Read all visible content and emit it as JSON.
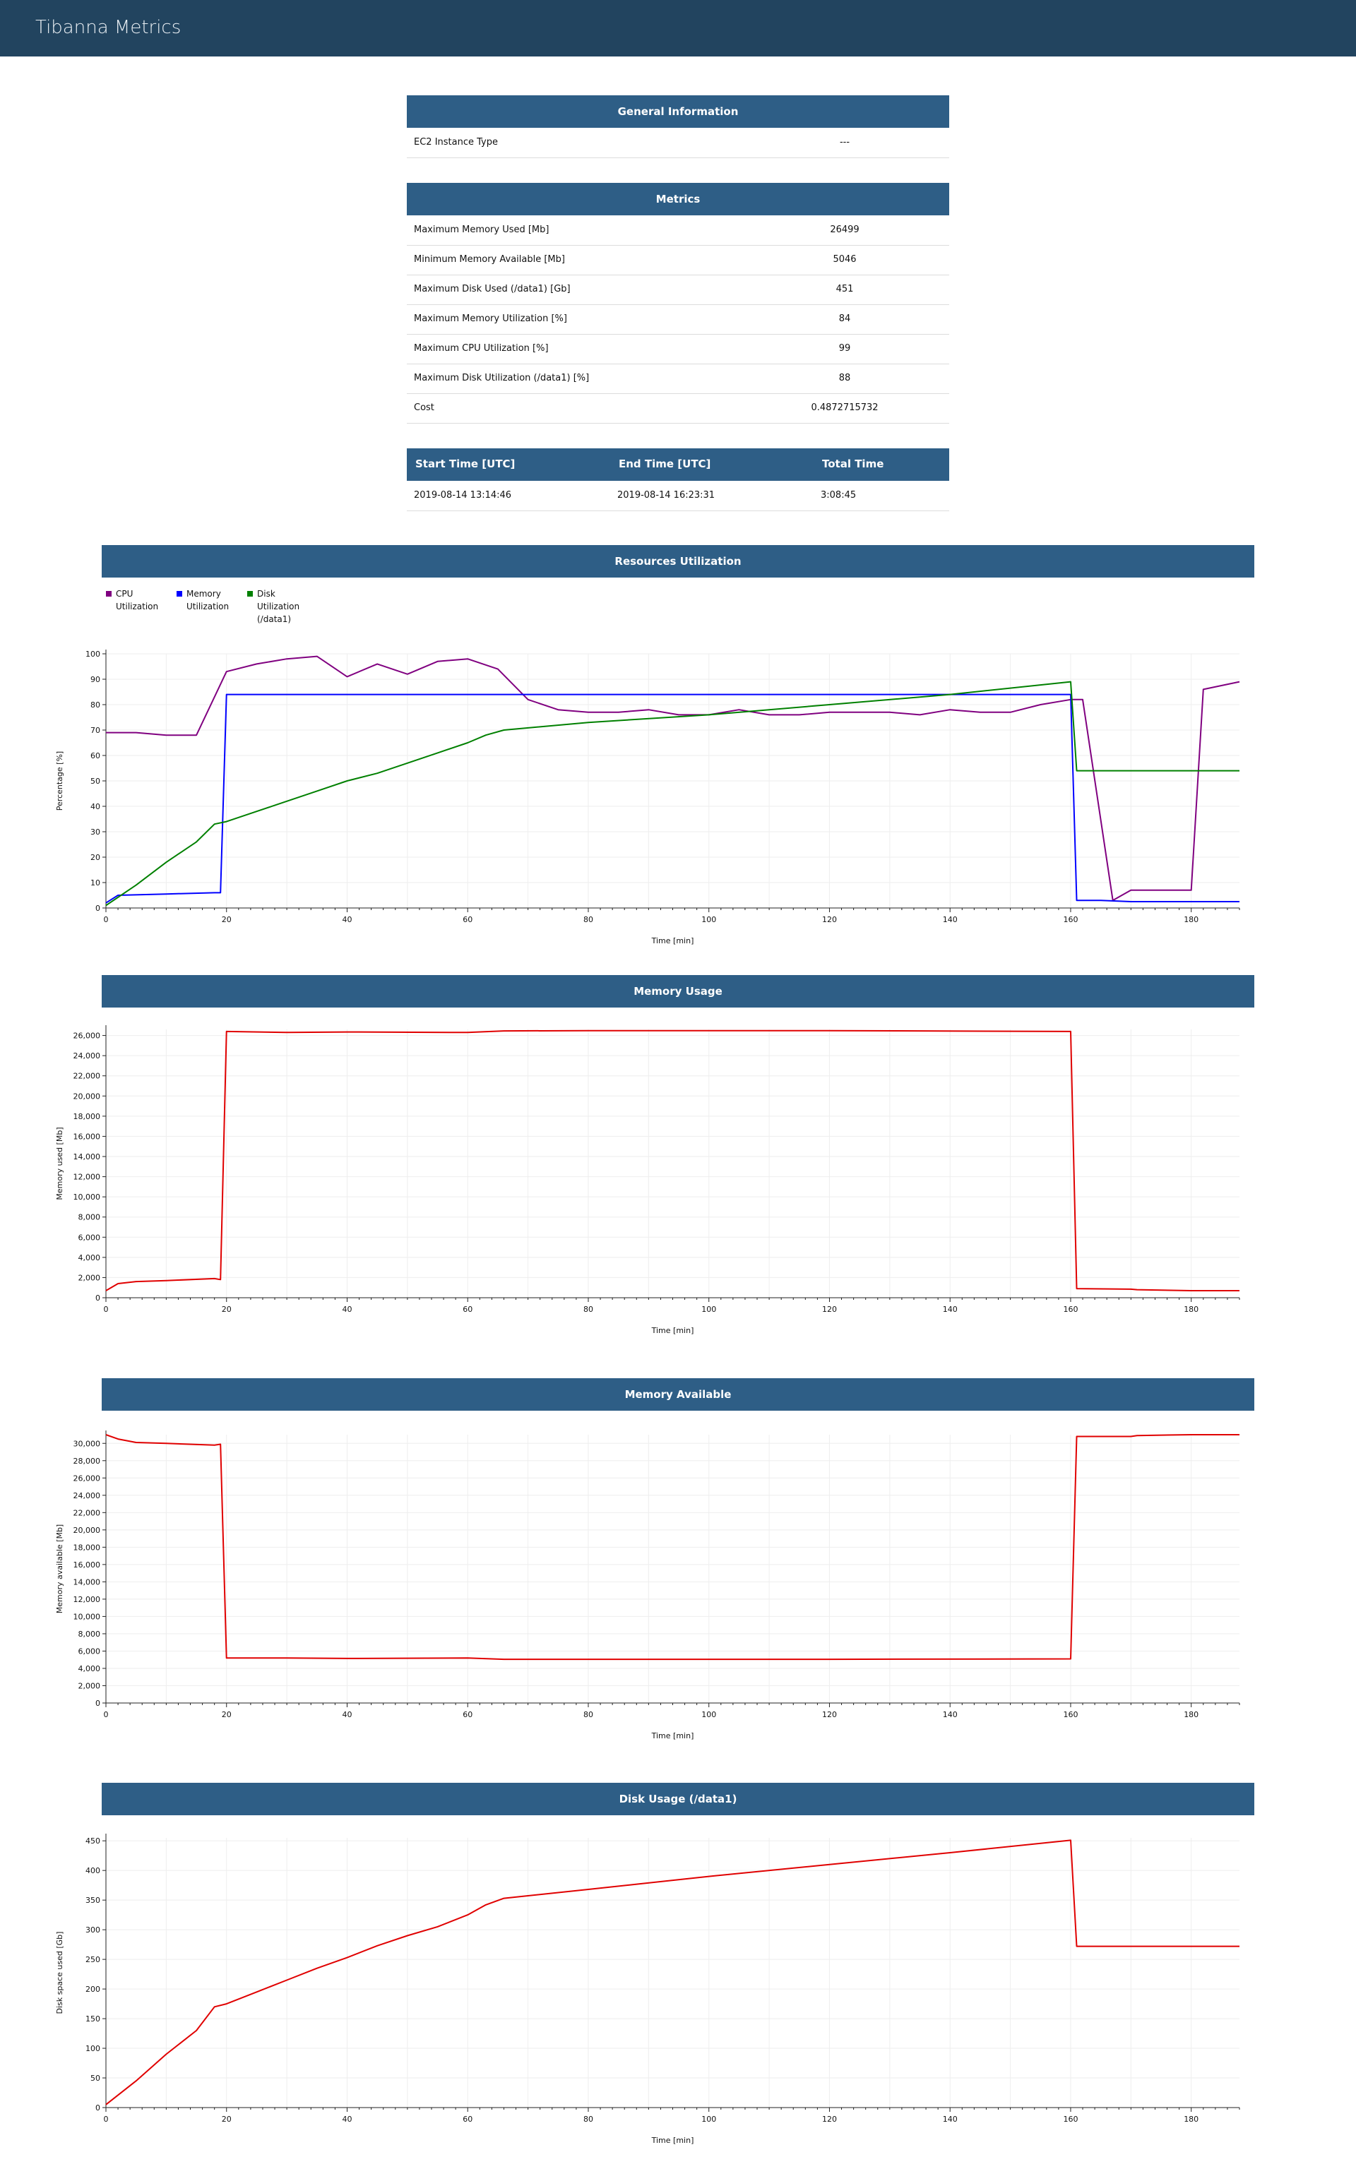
{
  "app": {
    "title": "Tibanna Metrics"
  },
  "general": {
    "header": "General Information",
    "rows": [
      {
        "label": "EC2 Instance Type",
        "value": "---"
      }
    ]
  },
  "metrics": {
    "header": "Metrics",
    "rows": [
      {
        "label": "Maximum Memory Used [Mb]",
        "value": "26499"
      },
      {
        "label": "Minimum Memory Available [Mb]",
        "value": "5046"
      },
      {
        "label": "Maximum Disk Used (/data1) [Gb]",
        "value": "451"
      },
      {
        "label": "Maximum Memory Utilization [%]",
        "value": "84"
      },
      {
        "label": "Maximum CPU Utilization [%]",
        "value": "99"
      },
      {
        "label": "Maximum Disk Utilization (/data1) [%]",
        "value": "88"
      },
      {
        "label": "Cost",
        "value": "0.4872715732"
      }
    ]
  },
  "timing": {
    "headers": [
      "Start Time [UTC]",
      "End Time [UTC]",
      "Total Time"
    ],
    "values": [
      "2019-08-14 13:14:46",
      "2019-08-14 16:23:31",
      "3:08:45"
    ]
  },
  "colors": {
    "topbar": "#22445f",
    "header": "#2e5e86",
    "cpu": "#800080",
    "memory": "#0000ff",
    "disk": "#008000",
    "red": "#e00000"
  },
  "chart_data": [
    {
      "type": "line",
      "title": "Resources Utilization",
      "xlabel": "Time [min]",
      "ylabel": "Percentage [%]",
      "xlim": [
        0,
        188
      ],
      "ylim": [
        0,
        100
      ],
      "xticks": [
        0,
        20,
        40,
        60,
        80,
        100,
        120,
        140,
        160,
        180
      ],
      "yticks": [
        0,
        10,
        20,
        30,
        40,
        50,
        60,
        70,
        80,
        90,
        100
      ],
      "ytick_labels": [
        "0",
        "10",
        "20",
        "30",
        "40",
        "50",
        "60",
        "70",
        "80",
        "90",
        "100"
      ],
      "legend_position": "top-left",
      "series": [
        {
          "name": "CPU Utilization",
          "color": "#800080",
          "x": [
            0,
            5,
            10,
            15,
            20,
            25,
            30,
            35,
            40,
            45,
            50,
            55,
            60,
            65,
            70,
            75,
            80,
            85,
            90,
            95,
            100,
            105,
            110,
            115,
            120,
            125,
            130,
            135,
            140,
            145,
            150,
            155,
            160,
            162,
            167,
            170,
            175,
            180,
            182,
            188
          ],
          "y": [
            69,
            69,
            68,
            68,
            93,
            96,
            98,
            99,
            91,
            96,
            92,
            97,
            98,
            94,
            82,
            78,
            77,
            77,
            78,
            76,
            76,
            78,
            76,
            76,
            77,
            77,
            77,
            76,
            78,
            77,
            77,
            80,
            82,
            82,
            3,
            7,
            7,
            7,
            86,
            89
          ]
        },
        {
          "name": "Memory Utilization",
          "color": "#0000ff",
          "x": [
            0,
            2,
            10,
            18,
            19,
            20,
            30,
            40,
            60,
            80,
            120,
            160,
            161,
            165,
            170,
            180,
            188
          ],
          "y": [
            2,
            5,
            5.5,
            6,
            6,
            84,
            84,
            84,
            84,
            84,
            84,
            84,
            3,
            3,
            2.5,
            2.5,
            2.5
          ]
        },
        {
          "name": "Disk Utilization (/data1)",
          "color": "#008000",
          "x": [
            0,
            5,
            10,
            15,
            18,
            20,
            25,
            30,
            35,
            40,
            45,
            50,
            55,
            60,
            63,
            66,
            80,
            100,
            120,
            140,
            160,
            161,
            165,
            188
          ],
          "y": [
            1,
            9,
            18,
            26,
            33,
            34,
            38,
            42,
            46,
            50,
            53,
            57,
            61,
            65,
            68,
            70,
            73,
            76,
            80,
            84,
            89,
            54,
            54,
            54
          ]
        }
      ]
    },
    {
      "type": "line",
      "title": "Memory Usage",
      "xlabel": "Time [min]",
      "ylabel": "Memory used [Mb]",
      "xlim": [
        0,
        188
      ],
      "ylim": [
        0,
        26600
      ],
      "xticks": [
        0,
        20,
        40,
        60,
        80,
        100,
        120,
        140,
        160,
        180
      ],
      "yticks": [
        0,
        2000,
        4000,
        6000,
        8000,
        10000,
        12000,
        14000,
        16000,
        18000,
        20000,
        22000,
        24000,
        26000
      ],
      "ytick_labels": [
        "0",
        "2,000",
        "4,000",
        "6,000",
        "8,000",
        "10,000",
        "12,000",
        "14,000",
        "16,000",
        "18,000",
        "20,000",
        "22,000",
        "24,000",
        "26,000"
      ],
      "series": [
        {
          "name": "",
          "color": "#e00000",
          "x": [
            0,
            2,
            5,
            10,
            18,
            19,
            20,
            30,
            40,
            60,
            66,
            80,
            120,
            160,
            161,
            170,
            171,
            180,
            188
          ],
          "y": [
            700,
            1400,
            1600,
            1700,
            1900,
            1800,
            26400,
            26300,
            26350,
            26300,
            26450,
            26480,
            26480,
            26400,
            900,
            850,
            800,
            700,
            700
          ]
        }
      ]
    },
    {
      "type": "line",
      "title": "Memory Available",
      "xlabel": "Time [min]",
      "ylabel": "Memory available [Mb]",
      "xlim": [
        0,
        188
      ],
      "ylim": [
        0,
        31000
      ],
      "xticks": [
        0,
        20,
        40,
        60,
        80,
        100,
        120,
        140,
        160,
        180
      ],
      "yticks": [
        0,
        2000,
        4000,
        6000,
        8000,
        10000,
        12000,
        14000,
        16000,
        18000,
        20000,
        22000,
        24000,
        26000,
        28000,
        30000
      ],
      "ytick_labels": [
        "0",
        "2,000",
        "4,000",
        "6,000",
        "8,000",
        "10,000",
        "12,000",
        "14,000",
        "16,000",
        "18,000",
        "20,000",
        "22,000",
        "24,000",
        "26,000",
        "28,000",
        "30,000"
      ],
      "series": [
        {
          "name": "",
          "color": "#e00000",
          "x": [
            0,
            2,
            5,
            10,
            18,
            19,
            20,
            30,
            40,
            60,
            66,
            80,
            120,
            160,
            161,
            170,
            171,
            180,
            188
          ],
          "y": [
            31000,
            30500,
            30100,
            30000,
            29800,
            29900,
            5200,
            5200,
            5150,
            5200,
            5050,
            5050,
            5050,
            5100,
            30800,
            30800,
            30900,
            31000,
            31000
          ]
        }
      ]
    },
    {
      "type": "line",
      "title": "Disk Usage (/data1)",
      "xlabel": "Time [min]",
      "ylabel": "Disk space used [Gb]",
      "xlim": [
        0,
        188
      ],
      "ylim": [
        0,
        455
      ],
      "xticks": [
        0,
        20,
        40,
        60,
        80,
        100,
        120,
        140,
        160,
        180
      ],
      "yticks": [
        0,
        50,
        100,
        150,
        200,
        250,
        300,
        350,
        400,
        450
      ],
      "ytick_labels": [
        "0",
        "50",
        "100",
        "150",
        "200",
        "250",
        "300",
        "350",
        "400",
        "450"
      ],
      "series": [
        {
          "name": "",
          "color": "#e00000",
          "x": [
            0,
            5,
            10,
            15,
            18,
            20,
            25,
            30,
            35,
            40,
            45,
            50,
            55,
            60,
            63,
            66,
            80,
            100,
            120,
            140,
            160,
            161,
            170,
            188
          ],
          "y": [
            5,
            45,
            90,
            130,
            170,
            175,
            195,
            215,
            235,
            253,
            273,
            290,
            305,
            325,
            342,
            353,
            368,
            390,
            410,
            430,
            451,
            272,
            272,
            272
          ]
        }
      ]
    }
  ]
}
